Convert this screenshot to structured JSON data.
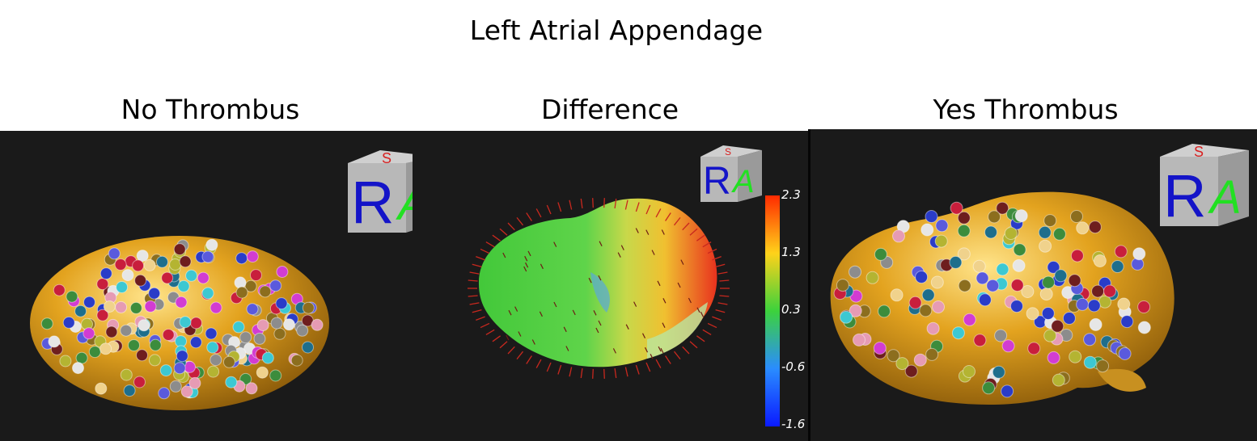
{
  "title": "Left Atrial Appendage",
  "panels": [
    {
      "label": "No Thrombus"
    },
    {
      "label": "Difference"
    },
    {
      "label": "Yes Thrombus"
    }
  ],
  "orientation_cube": {
    "front_letter": "R",
    "side_letter": "A",
    "top_letter": "S"
  },
  "colorbar": {
    "ticks": [
      "2.3",
      "1.3",
      "0.3",
      "-0.6",
      "-1.6"
    ],
    "colors": [
      "#ff2a00",
      "#ffd21a",
      "#3cd23c",
      "#2a8cff",
      "#0a1aff"
    ]
  },
  "colors": {
    "surface": "#e3a31f",
    "panel_background": "#1a1a1a",
    "arrows": "#c8281e"
  }
}
